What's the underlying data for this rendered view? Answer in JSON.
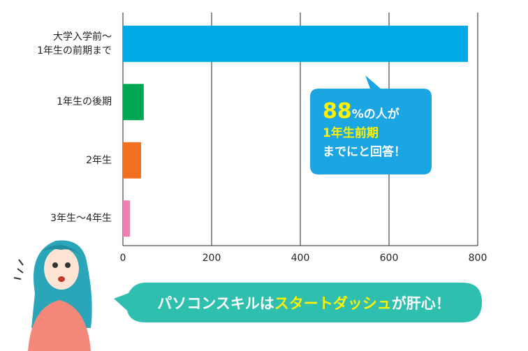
{
  "chart_data": {
    "type": "bar",
    "orientation": "horizontal",
    "categories": [
      "大学入学前～\n1年生の前期まで",
      "1年生の後期",
      "2年生",
      "3年生～4年生"
    ],
    "values": [
      778,
      47,
      41,
      16
    ],
    "colors": [
      "#00a8e8",
      "#00a651",
      "#f26f21",
      "#ee7fb0"
    ],
    "xlim": [
      0,
      800
    ],
    "xticks": [
      0,
      200,
      400,
      600,
      800
    ],
    "grid": true
  },
  "callout": {
    "parts": [
      "88",
      "%の人が",
      "1年生前期",
      "までにと回答！"
    ],
    "color": "#1ba6e3"
  },
  "banner": {
    "parts": [
      "パソコンスキルは",
      "スタートダッシュ",
      "が肝心！"
    ],
    "color": "#2ebfae"
  }
}
